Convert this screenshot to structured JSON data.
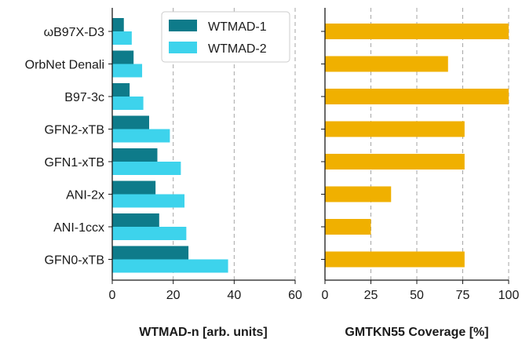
{
  "colors": {
    "wtmad1": "#0e7b8a",
    "wtmad2": "#3dd3ec",
    "coverage": "#f0b000",
    "grid": "#a6a6a6",
    "axis": "#1a1a1a"
  },
  "chart_data": [
    {
      "type": "bar",
      "orientation": "horizontal",
      "categories": [
        "ωB97X-D3",
        "OrbNet Denali",
        "B97-3c",
        "GFN2-xTB",
        "GFN1-xTB",
        "ANI-2x",
        "ANI-1ccx",
        "GFN0-xTB"
      ],
      "series": [
        {
          "name": "WTMAD-1",
          "values": [
            3.8,
            7.0,
            5.7,
            12.1,
            14.8,
            14.2,
            15.4,
            25.0
          ]
        },
        {
          "name": "WTMAD-2",
          "values": [
            6.4,
            9.8,
            10.2,
            18.9,
            22.5,
            23.7,
            24.3,
            38.0
          ]
        }
      ],
      "xlabel": "WTMAD-n [arb. units]",
      "xlim": [
        0,
        60
      ],
      "xticks": [
        0,
        20,
        40,
        60
      ],
      "grid": "vertical dashed",
      "legend": "top-right"
    },
    {
      "type": "bar",
      "orientation": "horizontal",
      "categories": [
        "ωB97X-D3",
        "OrbNet Denali",
        "B97-3c",
        "GFN2-xTB",
        "GFN1-xTB",
        "ANI-2x",
        "ANI-1ccx",
        "GFN0-xTB"
      ],
      "values": [
        100,
        67,
        100,
        76,
        76,
        36,
        25,
        76
      ],
      "xlabel": "GMTKN55 Coverage [%]",
      "xlim": [
        0,
        100
      ],
      "xticks": [
        0,
        25,
        50,
        75,
        100
      ],
      "grid": "vertical dashed"
    }
  ]
}
